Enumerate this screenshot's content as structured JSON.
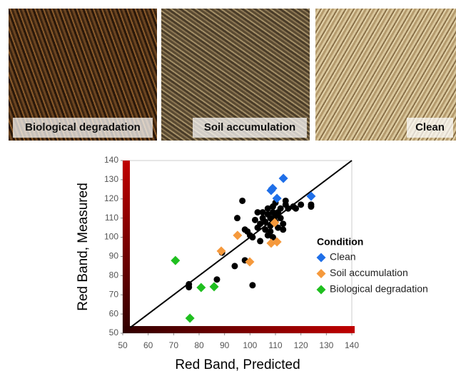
{
  "panels": [
    {
      "label": "Biological degradation"
    },
    {
      "label": "Soil accumulation"
    },
    {
      "label": "Clean"
    }
  ],
  "chart_data": {
    "type": "scatter",
    "x_label": "Red Band, Predicted",
    "y_label": "Red Band, Measured",
    "legend_title": "Condition",
    "xlim": [
      50,
      140
    ],
    "ylim": [
      50,
      140
    ],
    "xticks": [
      50,
      60,
      70,
      80,
      90,
      100,
      110,
      120,
      130,
      140
    ],
    "yticks": [
      50,
      60,
      70,
      80,
      90,
      100,
      110,
      120,
      130,
      140
    ],
    "series": [
      {
        "color": "#000000",
        "x": [
          76,
          76,
          87,
          89,
          94,
          95,
          97,
          98,
          99,
          100,
          101,
          101,
          102,
          103,
          103,
          104,
          104,
          105,
          105,
          106,
          106,
          107,
          107,
          107,
          108,
          108,
          108,
          109,
          109,
          109,
          110,
          110,
          110,
          111,
          111,
          112,
          112,
          113,
          113,
          114,
          114,
          115,
          117,
          118,
          120,
          124,
          124,
          98
        ],
        "values": [
          74,
          75.5,
          78,
          92,
          85,
          110,
          119,
          104,
          103,
          101,
          100,
          75,
          109,
          113,
          105,
          107,
          98,
          110,
          113,
          104,
          108,
          115,
          112,
          101,
          103,
          110,
          106,
          113,
          116,
          100,
          111,
          108,
          118,
          113,
          105,
          115,
          110,
          107,
          104,
          119,
          117,
          115,
          116,
          115,
          117,
          117,
          116,
          88
        ]
      },
      {
        "name": "Clean",
        "color": "#1f6fe8",
        "x": [
          108.3,
          108.9,
          113.1,
          124,
          110.6
        ],
        "values": [
          124.4,
          125.5,
          130.7,
          121.4,
          120.3
        ]
      },
      {
        "name": "Soil accumulation",
        "color": "#f5993c",
        "x": [
          95.1,
          88.7,
          99.9,
          108.3,
          110.6,
          109.7
        ],
        "values": [
          101,
          92.8,
          87.2,
          96.9,
          97.6,
          107.6
        ]
      },
      {
        "name": "Biological degradation",
        "color": "#1fbf1f",
        "x": [
          70.7,
          80.8,
          85.9,
          76.4
        ],
        "values": [
          87.9,
          73.8,
          74.2,
          57.8
        ]
      }
    ]
  }
}
